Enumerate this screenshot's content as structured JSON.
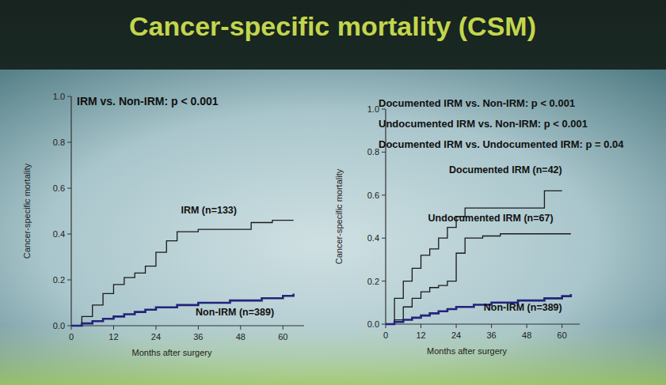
{
  "title": "Cancer-specific mortality (CSM)",
  "chart_data": [
    {
      "type": "line",
      "line_style": "step",
      "grid": false,
      "annotations": [
        "IRM vs. Non-IRM: p < 0.001"
      ],
      "x_label": "Months after surgery",
      "y_label": "Cancer-specific mortality",
      "xlim": [
        0,
        66
      ],
      "xticks": [
        0,
        12,
        24,
        36,
        48,
        60
      ],
      "ylim": [
        0,
        1.0
      ],
      "yticks": [
        {
          "value": 0,
          "label": "0.0"
        },
        {
          "value": 0.2,
          "label": "0.2"
        },
        {
          "value": 0.4,
          "label": "0.4"
        },
        {
          "value": 0.6,
          "label": "0.6"
        },
        {
          "value": 0.8,
          "label": "0.8"
        },
        {
          "value": 1.0,
          "label": "1.0"
        }
      ],
      "x": [
        0,
        3,
        6,
        9,
        12,
        15,
        18,
        21,
        24,
        27,
        30,
        33,
        36,
        39,
        42,
        45,
        48,
        51,
        54,
        57,
        60,
        63
      ],
      "series": [
        {
          "name": "IRM (n=133)",
          "color": "#1a1a1a",
          "values": [
            0,
            0.04,
            0.09,
            0.14,
            0.18,
            0.21,
            0.23,
            0.26,
            0.32,
            0.37,
            0.41,
            0.41,
            0.42,
            0.42,
            0.42,
            0.42,
            0.42,
            0.45,
            0.45,
            0.46,
            0.46,
            0.46
          ]
        },
        {
          "name": "Non-IRM (n=389)",
          "color": "#23237a",
          "values": [
            0,
            0.01,
            0.02,
            0.03,
            0.04,
            0.05,
            0.06,
            0.07,
            0.08,
            0.08,
            0.09,
            0.09,
            0.1,
            0.1,
            0.1,
            0.11,
            0.11,
            0.11,
            0.12,
            0.12,
            0.13,
            0.14
          ]
        }
      ]
    },
    {
      "type": "line",
      "line_style": "step",
      "grid": false,
      "annotations": [
        "Documented IRM vs. Non-IRM: p < 0.001",
        "Undocumented IRM vs. Non-IRM: p < 0.001",
        "Documented IRM vs. Undocumented IRM: p = 0.04"
      ],
      "x_label": "Months after surgery",
      "y_label": "Cancer-specific mortality",
      "xlim": [
        0,
        66
      ],
      "xticks": [
        0,
        12,
        24,
        36,
        48,
        60
      ],
      "ylim": [
        0,
        1.0
      ],
      "yticks": [
        {
          "value": 0,
          "label": "0.0"
        },
        {
          "value": 0.2,
          "label": "0.2"
        },
        {
          "value": 0.4,
          "label": "0.4"
        },
        {
          "value": 0.6,
          "label": "0.6"
        },
        {
          "value": 0.8,
          "label": "0.8"
        },
        {
          "value": 1.0,
          "label": "1.0"
        }
      ],
      "x": [
        0,
        3,
        6,
        9,
        12,
        15,
        18,
        21,
        24,
        27,
        30,
        33,
        36,
        39,
        42,
        45,
        48,
        51,
        54,
        57,
        60,
        63
      ],
      "series": [
        {
          "name": "Documented IRM (n=42)",
          "color": "#1a1a1a",
          "values": [
            0,
            0.12,
            0.2,
            0.26,
            0.32,
            0.35,
            0.4,
            0.45,
            0.5,
            0.54,
            0.54,
            0.54,
            0.54,
            0.54,
            0.54,
            0.54,
            0.54,
            0.54,
            0.62,
            0.62,
            0.62,
            null
          ]
        },
        {
          "name": "Undocumented IRM (n=67)",
          "color": "#1a1a1a",
          "values": [
            0,
            0.02,
            0.08,
            0.12,
            0.15,
            0.17,
            0.18,
            0.2,
            0.33,
            0.4,
            0.4,
            0.41,
            0.41,
            0.42,
            0.42,
            0.42,
            0.42,
            0.42,
            0.42,
            0.42,
            0.42,
            0.42
          ]
        },
        {
          "name": "Non-IRM (n=389)",
          "color": "#23237a",
          "values": [
            0,
            0.01,
            0.02,
            0.03,
            0.04,
            0.05,
            0.06,
            0.07,
            0.08,
            0.08,
            0.09,
            0.09,
            0.1,
            0.1,
            0.1,
            0.11,
            0.11,
            0.11,
            0.12,
            0.12,
            0.13,
            0.14
          ]
        }
      ]
    }
  ]
}
